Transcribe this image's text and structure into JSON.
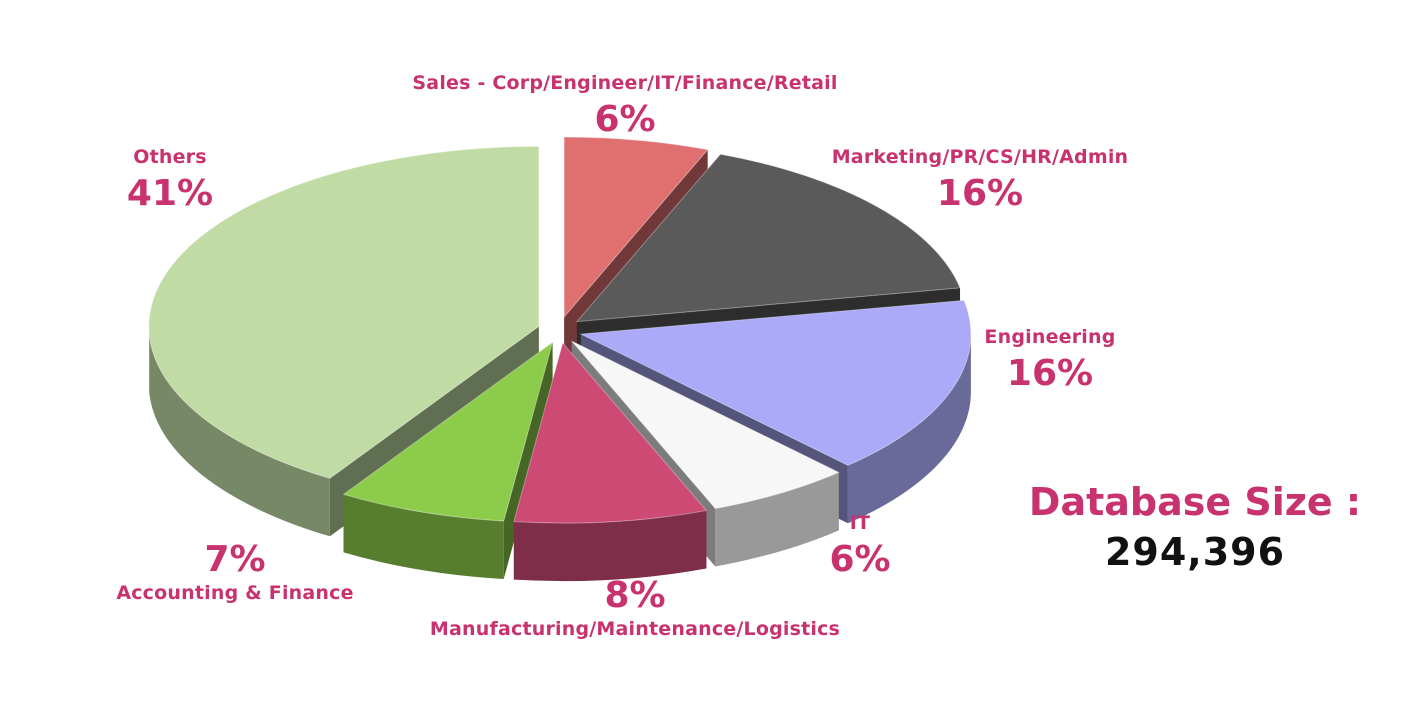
{
  "chart_data": {
    "type": "pie",
    "style": "3d-exploded",
    "slices": [
      {
        "name": "Sales - Corp/Engineer/IT/Finance/Retail",
        "value": 6,
        "label": "6%",
        "color": "#e07070"
      },
      {
        "name": "Marketing/PR/CS/HR/Admin",
        "value": 16,
        "label": "16%",
        "color": "#5a5a5a"
      },
      {
        "name": "Engineering",
        "value": 16,
        "label": "16%",
        "color": "#aaaaf8"
      },
      {
        "name": "IT",
        "value": 6,
        "label": "6%",
        "color": "#f7f7f7"
      },
      {
        "name": "Manufacturing/Maintenance/Logistics",
        "value": 8,
        "label": "8%",
        "color": "#cc4a74"
      },
      {
        "name": "Accounting & Finance",
        "value": 7,
        "label": "7%",
        "color": "#8ccc4a"
      },
      {
        "name": "Others",
        "value": 41,
        "label": "41%",
        "color": "#c0dca4"
      }
    ]
  },
  "database": {
    "label": "Database Size :",
    "value": "294,396"
  },
  "colors": {
    "label_text": "#c8326e",
    "value_text": "#111111"
  }
}
